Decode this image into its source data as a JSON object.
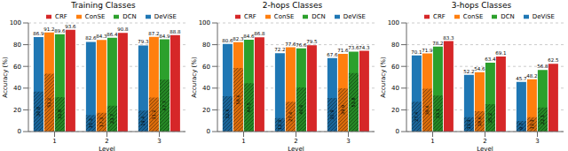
{
  "chart_data": [
    {
      "type": "bar",
      "title": "Training Classes",
      "x_label": "Level",
      "y_label": "Accuracy (%)",
      "categories": [
        "1",
        "2",
        "3"
      ],
      "ylim": [
        0,
        100
      ],
      "yticks": [
        0,
        20,
        40,
        60,
        80,
        100
      ],
      "grid": true,
      "legend": "upper right",
      "data_labels": true,
      "series": [
        {
          "name": "DeViSE",
          "color": "#1f77b4",
          "values": [
            86.9,
            82.6,
            79.3
          ],
          "hatched_values": [
            36.8,
            15.3,
            19.4
          ]
        },
        {
          "name": "ConSE",
          "color": "#ff7f0e",
          "values": [
            91.2,
            84.3,
            87.2
          ],
          "hatched_values": [
            53.2,
            17.3,
            31.2
          ]
        },
        {
          "name": "DCN",
          "color": "#2ca02c",
          "values": [
            89.6,
            86.4,
            84.9
          ],
          "hatched_values": [
            31.8,
            23.7,
            47.7
          ]
        },
        {
          "name": "CRF",
          "color": "#d62728",
          "values": [
            93.6,
            90.8,
            88.8
          ],
          "hatched_values": [
            null,
            null,
            null
          ]
        }
      ]
    },
    {
      "type": "bar",
      "title": "2-hops Classes",
      "x_label": "Level",
      "y_label": "Accuracy (%)",
      "categories": [
        "1",
        "2",
        "3"
      ],
      "ylim": [
        0,
        100
      ],
      "yticks": [
        0,
        20,
        40,
        60,
        80,
        100
      ],
      "grid": true,
      "legend": "upper right",
      "data_labels": true,
      "series": [
        {
          "name": "DeViSE",
          "color": "#1f77b4",
          "values": [
            80.6,
            72.2,
            67.6
          ],
          "hatched_values": [
            32.6,
            12.3,
            30.9
          ]
        },
        {
          "name": "ConSE",
          "color": "#ff7f0e",
          "values": [
            82.3,
            77.6,
            71.6
          ],
          "hatched_values": [
            58.6,
            27.4,
            39.9
          ]
        },
        {
          "name": "DCN",
          "color": "#2ca02c",
          "values": [
            84.6,
            76.6,
            73.6
          ],
          "hatched_values": [
            44.5,
            40.6,
            53.8
          ]
        },
        {
          "name": "CRF",
          "color": "#d62728",
          "values": [
            86.8,
            79.5,
            74.3
          ],
          "hatched_values": [
            null,
            null,
            null
          ]
        }
      ]
    },
    {
      "type": "bar",
      "title": "3-hops Classes",
      "x_label": "Level",
      "y_label": "Accuracy (%)",
      "categories": [
        "1",
        "2",
        "3"
      ],
      "ylim": [
        0,
        100
      ],
      "yticks": [
        0,
        20,
        40,
        60,
        80,
        100
      ],
      "grid": true,
      "legend": "upper right",
      "data_labels": true,
      "series": [
        {
          "name": "DeViSE",
          "color": "#1f77b4",
          "values": [
            70.1,
            52.2,
            45.7
          ],
          "hatched_values": [
            27.4,
            13.3,
            9.7
          ]
        },
        {
          "name": "ConSE",
          "color": "#ff7f0e",
          "values": [
            71.9,
            54.6,
            48.2
          ],
          "hatched_values": [
            39.4,
            18.6,
            13.3
          ]
        },
        {
          "name": "DCN",
          "color": "#2ca02c",
          "values": [
            78.2,
            63.4,
            56.8
          ],
          "hatched_values": [
            33.1,
            25.2,
            22.1
          ]
        },
        {
          "name": "CRF",
          "color": "#d62728",
          "values": [
            83.3,
            69.1,
            62.5
          ],
          "hatched_values": [
            null,
            null,
            null
          ]
        }
      ]
    }
  ]
}
